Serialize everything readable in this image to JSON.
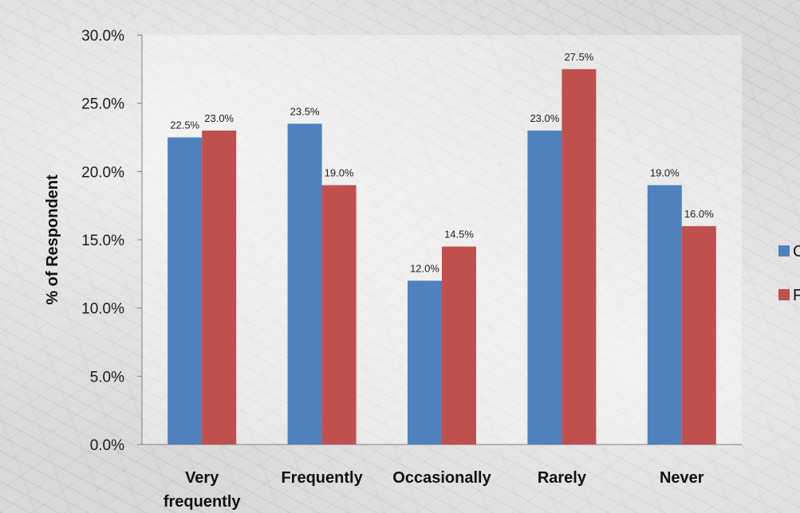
{
  "chart_data": {
    "type": "bar",
    "categories": [
      "Very frequently",
      "Frequently",
      "Occasionally",
      "Rarely",
      "Never"
    ],
    "category_lines": [
      [
        "Very",
        "frequently"
      ],
      [
        "Frequently"
      ],
      [
        "Occasionally"
      ],
      [
        "Rarely"
      ],
      [
        "Never"
      ]
    ],
    "series": [
      {
        "name": "C",
        "color": "#4f81bd",
        "values": [
          22.5,
          23.5,
          12.0,
          23.0,
          19.0
        ]
      },
      {
        "name": "F",
        "color": "#c0504d",
        "values": [
          23.0,
          19.0,
          14.5,
          27.5,
          16.0
        ]
      }
    ],
    "ylabel": "% of Respondent",
    "ylim": [
      0,
      30
    ],
    "yticks": [
      0,
      5,
      10,
      15,
      20,
      25,
      30
    ],
    "value_suffix": "%",
    "grid": false,
    "legend_position": "right"
  }
}
